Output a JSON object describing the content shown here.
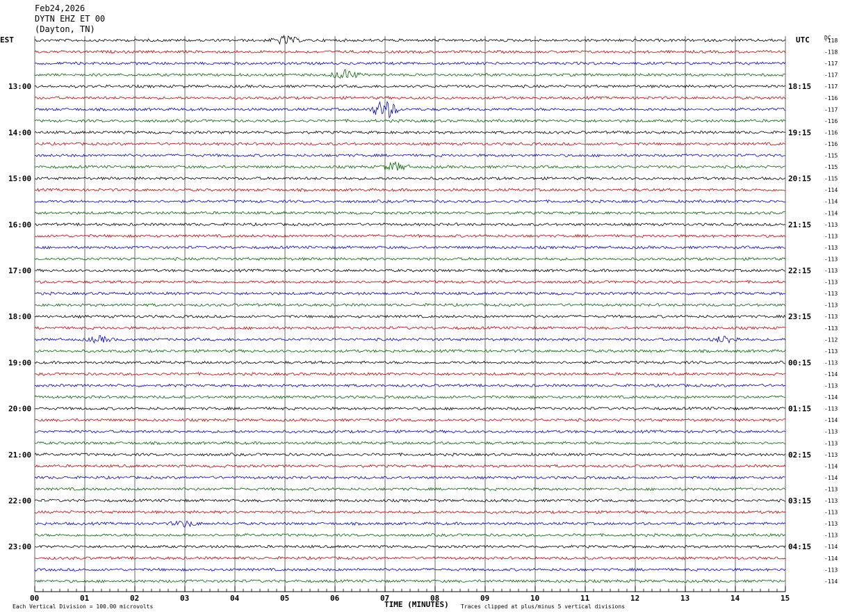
{
  "header": {
    "date": "Feb24,2026",
    "station": "DYTN EHZ ET 00",
    "location": "(Dayton, TN)"
  },
  "left_tz": "EST",
  "right_tz": "UTC",
  "dc_label": "DC",
  "footer": {
    "scale": "Each Vertical Division =  100.00 microvolts",
    "clip": "Traces clipped at plus/minus 5 vertical divisions"
  },
  "colors": {
    "trace_cycle": [
      "#000000",
      "#cc0000",
      "#0000cc",
      "#006600"
    ],
    "grid": "#000000"
  },
  "chart_data": {
    "type": "line",
    "xlabel": "TIME (MINUTES)",
    "xlim": [
      0,
      15
    ],
    "x_ticks": [
      "00",
      "01",
      "02",
      "03",
      "04",
      "05",
      "06",
      "07",
      "08",
      "09",
      "10",
      "11",
      "12",
      "13",
      "14",
      "15"
    ],
    "left_hour_labels": [
      "13:00",
      "14:00",
      "15:00",
      "16:00",
      "17:00",
      "18:00",
      "19:00",
      "20:00",
      "21:00",
      "22:00",
      "23:00"
    ],
    "right_hour_labels": [
      "18:15",
      "19:15",
      "20:15",
      "21:15",
      "22:15",
      "23:15",
      "00:15",
      "01:15",
      "02:15",
      "03:15",
      "04:15"
    ],
    "dc_values": [
      "-118",
      "-118",
      "-117",
      "-117",
      "-117",
      "-116",
      "-117",
      "-116",
      "-116",
      "-116",
      "-115",
      "-115",
      "-115",
      "-114",
      "-114",
      "-114",
      "-113",
      "-113",
      "-113",
      "-113",
      "-113",
      "-113",
      "-113",
      "-113",
      "-113",
      "-113",
      "-112",
      "-113",
      "-113",
      "-114",
      "-113",
      "-114",
      "-113",
      "-114",
      "-113",
      "-113",
      "-113",
      "-114",
      "-114",
      "-113",
      "-113",
      "-113",
      "-113",
      "-113",
      "-114",
      "-114",
      "-113",
      "-114"
    ],
    "events": [
      {
        "trace": 0,
        "minute": 5.0,
        "amplitude": 6
      },
      {
        "trace": 3,
        "minute": 6.2,
        "amplitude": 7
      },
      {
        "trace": 6,
        "minute": 7.0,
        "amplitude": 14
      },
      {
        "trace": 11,
        "minute": 7.2,
        "amplitude": 6
      },
      {
        "trace": 26,
        "minute": 1.3,
        "amplitude": 4
      },
      {
        "trace": 26,
        "minute": 13.8,
        "amplitude": 5
      },
      {
        "trace": 42,
        "minute": 3.0,
        "amplitude": 4
      }
    ]
  }
}
